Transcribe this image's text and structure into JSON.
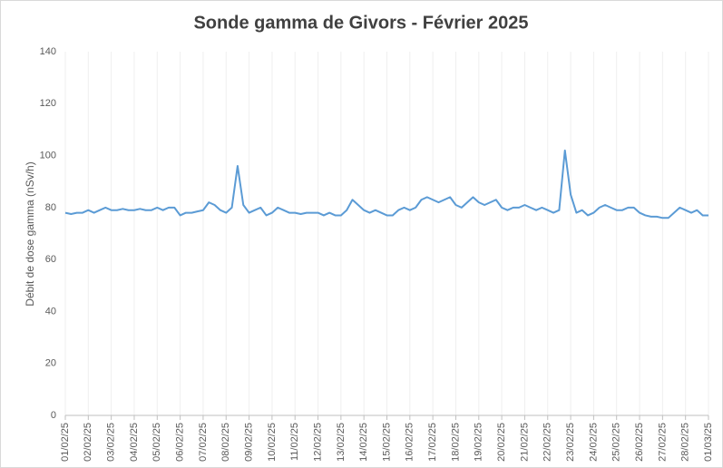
{
  "chart_data": {
    "type": "line",
    "title": "Sonde gamma de Givors - Février 2025",
    "y_label": "Débit de dose gamma (nSv/h)",
    "categories": [
      "01/02/25",
      null,
      null,
      null,
      "02/02/25",
      null,
      null,
      null,
      "03/02/25",
      null,
      null,
      null,
      "04/02/25",
      null,
      null,
      null,
      "05/02/25",
      null,
      null,
      null,
      "06/02/25",
      null,
      null,
      null,
      "07/02/25",
      null,
      null,
      null,
      "08/02/25",
      null,
      null,
      null,
      "09/02/25",
      null,
      null,
      null,
      "10/02/25",
      null,
      null,
      null,
      "11/02/25",
      null,
      null,
      null,
      "12/02/25",
      null,
      null,
      null,
      "13/02/25",
      null,
      null,
      null,
      "14/02/25",
      null,
      null,
      null,
      "15/02/25",
      null,
      null,
      null,
      "16/02/25",
      null,
      null,
      null,
      "17/02/25",
      null,
      null,
      null,
      "18/02/25",
      null,
      null,
      null,
      "19/02/25",
      null,
      null,
      null,
      "20/02/25",
      null,
      null,
      null,
      "21/02/25",
      null,
      null,
      null,
      "22/02/25",
      null,
      null,
      null,
      "23/02/25",
      null,
      null,
      null,
      "24/02/25",
      null,
      null,
      null,
      "25/02/25",
      null,
      null,
      null,
      "26/02/25",
      null,
      null,
      null,
      "27/02/25",
      null,
      null,
      null,
      "28/02/25",
      null,
      null,
      null,
      "01/03/25"
    ],
    "series": [
      {
        "color": "#5b9bd5",
        "values": [
          78,
          77.5,
          78,
          78,
          79,
          78,
          79,
          80,
          79,
          79,
          79.5,
          79,
          79,
          79.5,
          79,
          79,
          80,
          79,
          80,
          80,
          77,
          78,
          78,
          78.5,
          79,
          82,
          81,
          79,
          78,
          80,
          96,
          81,
          78,
          79,
          80,
          77,
          78,
          80,
          79,
          78,
          78,
          77.5,
          78,
          78,
          78,
          77,
          78,
          77,
          77,
          79,
          83,
          81,
          79,
          78,
          79,
          78,
          77,
          77,
          79,
          80,
          79,
          80,
          83,
          84,
          83,
          82,
          83,
          84,
          81,
          80,
          82,
          84,
          82,
          81,
          82,
          83,
          80,
          79,
          80,
          80,
          81,
          80,
          79,
          80,
          79,
          78,
          79,
          102,
          85,
          78,
          79,
          77,
          78,
          80,
          81,
          80,
          79,
          79,
          80,
          80,
          78,
          77,
          76.5,
          76.5,
          76,
          76,
          78,
          80,
          79,
          78,
          79,
          77,
          77
        ]
      }
    ],
    "ylim": [
      0,
      140
    ],
    "yticks": [
      0,
      20,
      40,
      60,
      80,
      100,
      120,
      140
    ],
    "grid": true
  }
}
